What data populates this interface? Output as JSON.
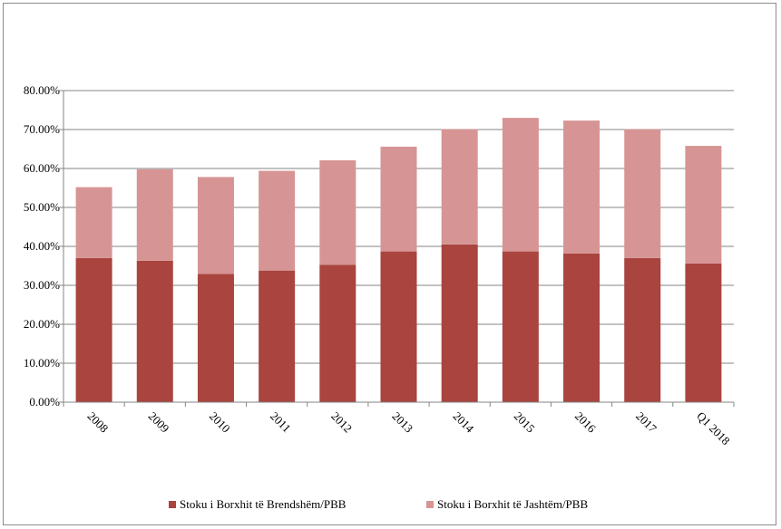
{
  "chart_data": {
    "type": "bar",
    "stacked": true,
    "categories": [
      "2008",
      "2009",
      "2010",
      "2011",
      "2012",
      "2013",
      "2014",
      "2015",
      "2016",
      "2017",
      "Q1 2018"
    ],
    "series": [
      {
        "name": "Stoku i Borxhit të Brendshëm/PBB",
        "color": "#a9443f",
        "values": [
          37.0,
          36.3,
          32.9,
          33.8,
          35.3,
          38.7,
          40.5,
          38.7,
          38.2,
          37.0,
          35.6
        ]
      },
      {
        "name": "Stoku i Borxhit të Jashtëm/PBB",
        "color": "#d69594",
        "values": [
          18.2,
          23.5,
          24.9,
          25.6,
          26.8,
          26.9,
          29.6,
          34.3,
          34.1,
          33.1,
          30.2
        ]
      }
    ],
    "y_ticks": [
      "0.00%",
      "10.00%",
      "20.00%",
      "30.00%",
      "40.00%",
      "50.00%",
      "60.00%",
      "70.00%",
      "80.00%"
    ],
    "ylim": [
      0,
      80
    ],
    "grid": true,
    "legend": "bottom",
    "title": "",
    "xlabel": "",
    "ylabel": ""
  }
}
